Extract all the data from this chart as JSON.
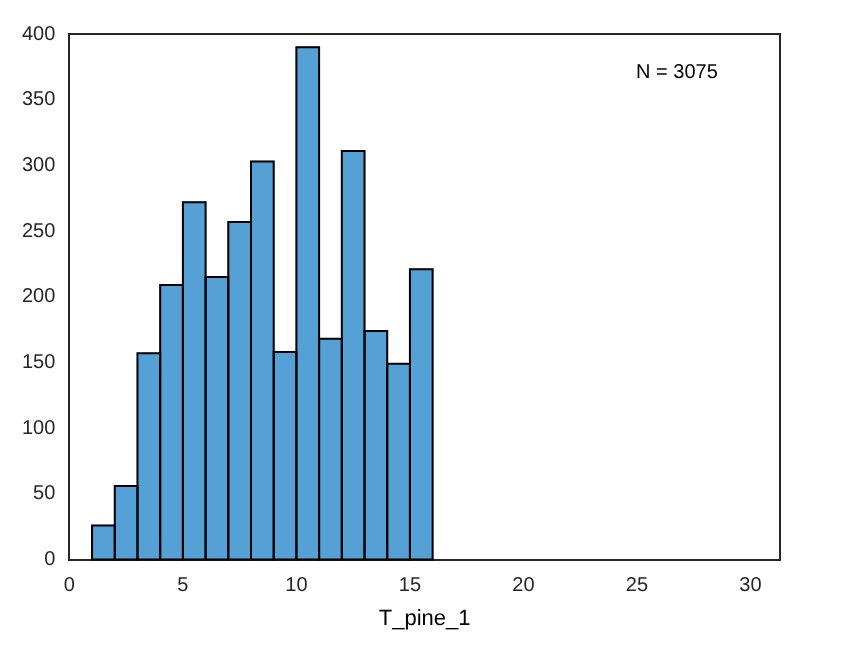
{
  "chart_data": {
    "type": "histogram",
    "xlabel": "T_pine_1",
    "annotations": [
      "N = 3075"
    ],
    "bins": [
      1,
      2,
      3,
      4,
      5,
      6,
      7,
      8,
      9,
      10,
      11,
      12,
      13,
      14,
      15,
      16
    ],
    "values": [
      26,
      56,
      157,
      209,
      272,
      215,
      257,
      303,
      158,
      390,
      168,
      311,
      174,
      149,
      221
    ],
    "color": "#55a0d4",
    "xlim": [
      0,
      31.3
    ],
    "xticks": [
      0,
      5,
      10,
      15,
      20,
      25,
      30
    ],
    "ylim": [
      0,
      400
    ],
    "yticks": [
      0,
      50,
      100,
      150,
      200,
      250,
      300,
      350,
      400
    ],
    "grid": false,
    "legend": false
  }
}
